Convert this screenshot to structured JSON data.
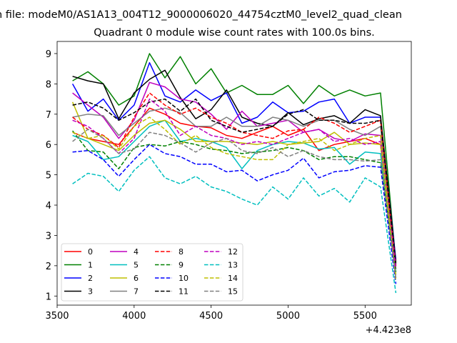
{
  "chart_data": {
    "type": "line",
    "suptitle": "n file: modeM0/AS1A13_004T12_9000006020_44754cztM0_level2_quad_clean",
    "title": "Quadrant 0 module wise count rates with 100.0s bins.",
    "xlabel": "",
    "ylabel": "",
    "x_offset_label": "+4.423e8",
    "xlim": [
      3500,
      5800
    ],
    "ylim": [
      0.7,
      9.4
    ],
    "xticks": [
      "3500",
      "4000",
      "4500",
      "5000",
      "5500"
    ],
    "yticks": [
      "1",
      "2",
      "3",
      "4",
      "5",
      "6",
      "7",
      "8",
      "9"
    ],
    "x": [
      3600,
      3700,
      3800,
      3900,
      4000,
      4100,
      4200,
      4300,
      4400,
      4500,
      4600,
      4700,
      4800,
      4900,
      5000,
      5100,
      5200,
      5300,
      5400,
      5500,
      5600,
      5700
    ],
    "legend": {
      "placement": "lower-left",
      "columns": 4
    },
    "series": [
      {
        "name": "0",
        "color": "#ff0000",
        "dash": false,
        "values": [
          6.4,
          6.2,
          6.1,
          6.0,
          6.6,
          7.2,
          7.0,
          6.7,
          6.6,
          6.55,
          6.3,
          6.2,
          6.4,
          6.6,
          6.3,
          6.5,
          5.8,
          6.0,
          6.1,
          6.2,
          6.0,
          1.9
        ]
      },
      {
        "name": "1",
        "color": "#008000",
        "dash": false,
        "values": [
          8.1,
          8.4,
          8.0,
          7.3,
          7.6,
          9.0,
          8.2,
          8.9,
          8.0,
          8.5,
          7.7,
          7.95,
          7.65,
          7.65,
          7.95,
          7.35,
          7.95,
          7.6,
          7.8,
          7.6,
          7.7,
          2.1
        ]
      },
      {
        "name": "2",
        "color": "#0000ff",
        "dash": false,
        "values": [
          8.0,
          7.1,
          7.5,
          6.8,
          7.3,
          8.7,
          7.6,
          7.4,
          7.8,
          7.45,
          7.7,
          6.7,
          6.9,
          7.4,
          7.05,
          7.1,
          7.4,
          7.5,
          6.7,
          6.9,
          6.9,
          2.2
        ]
      },
      {
        "name": "3",
        "color": "#000000",
        "dash": false,
        "values": [
          8.25,
          8.1,
          8.0,
          6.85,
          7.7,
          8.15,
          8.45,
          7.55,
          6.85,
          7.15,
          7.8,
          6.9,
          6.7,
          6.6,
          7.05,
          6.65,
          6.85,
          6.95,
          6.7,
          7.15,
          6.95,
          2.1
        ]
      },
      {
        "name": "4",
        "color": "#bf00bf",
        "dash": false,
        "values": [
          7.7,
          7.3,
          6.9,
          6.2,
          6.8,
          8.05,
          7.9,
          7.5,
          7.4,
          7.0,
          6.5,
          7.1,
          6.6,
          6.7,
          6.8,
          6.4,
          6.5,
          6.2,
          6.1,
          6.35,
          6.3,
          2.0
        ]
      },
      {
        "name": "5",
        "color": "#00bfbf",
        "dash": false,
        "values": [
          6.3,
          6.1,
          5.5,
          5.6,
          6.1,
          6.6,
          6.8,
          6.1,
          6.2,
          6.1,
          5.9,
          5.2,
          5.8,
          6.0,
          6.1,
          6.05,
          5.85,
          5.9,
          5.35,
          5.75,
          5.7,
          1.8
        ]
      },
      {
        "name": "6",
        "color": "#bfbf00",
        "dash": false,
        "values": [
          7.4,
          6.2,
          6.0,
          5.8,
          6.3,
          6.7,
          6.8,
          6.5,
          6.1,
          6.1,
          6.1,
          6.05,
          6.0,
          6.1,
          6.0,
          6.05,
          6.1,
          6.4,
          6.0,
          6.05,
          6.0,
          1.7
        ]
      },
      {
        "name": "7",
        "color": "#808080",
        "dash": false,
        "values": [
          6.9,
          7.0,
          6.95,
          6.3,
          6.7,
          7.1,
          7.2,
          7.05,
          6.6,
          6.6,
          6.9,
          6.6,
          6.6,
          6.9,
          6.8,
          6.6,
          6.8,
          6.8,
          6.5,
          6.3,
          6.6,
          1.9
        ]
      },
      {
        "name": "8",
        "color": "#ff0000",
        "dash": true,
        "values": [
          6.9,
          6.5,
          6.3,
          5.9,
          6.9,
          7.7,
          7.3,
          7.0,
          7.2,
          6.9,
          6.7,
          6.4,
          6.3,
          6.2,
          6.45,
          6.5,
          6.9,
          6.7,
          6.4,
          6.6,
          6.8,
          2.0
        ]
      },
      {
        "name": "9",
        "color": "#008000",
        "dash": true,
        "values": [
          6.45,
          5.8,
          5.75,
          5.2,
          5.9,
          6.0,
          5.95,
          6.1,
          6.0,
          5.85,
          5.8,
          5.7,
          5.75,
          5.8,
          5.9,
          5.8,
          5.5,
          5.6,
          5.6,
          5.5,
          5.4,
          1.8
        ]
      },
      {
        "name": "10",
        "color": "#0000ff",
        "dash": true,
        "values": [
          5.75,
          5.8,
          5.5,
          4.95,
          5.5,
          6.0,
          5.7,
          5.6,
          5.35,
          5.35,
          5.1,
          5.15,
          4.8,
          5.0,
          5.15,
          5.55,
          4.9,
          5.1,
          5.15,
          5.3,
          5.25,
          1.4
        ]
      },
      {
        "name": "11",
        "color": "#000000",
        "dash": true,
        "values": [
          7.3,
          7.4,
          7.2,
          6.8,
          7.05,
          7.4,
          7.5,
          7.1,
          7.5,
          6.8,
          6.6,
          6.4,
          6.5,
          6.6,
          7.0,
          7.15,
          6.8,
          6.8,
          6.7,
          6.7,
          6.8,
          2.0
        ]
      },
      {
        "name": "12",
        "color": "#bf00bf",
        "dash": true,
        "values": [
          6.8,
          6.6,
          6.2,
          5.7,
          6.2,
          7.5,
          7.1,
          6.3,
          6.6,
          6.3,
          6.2,
          6.0,
          6.1,
          6.0,
          6.2,
          6.4,
          6.5,
          6.1,
          6.2,
          6.0,
          6.1,
          1.9
        ]
      },
      {
        "name": "13",
        "color": "#00bfbf",
        "dash": true,
        "values": [
          4.7,
          5.05,
          4.95,
          4.45,
          5.15,
          5.6,
          4.9,
          4.7,
          4.95,
          4.6,
          4.45,
          4.2,
          4.0,
          4.6,
          4.2,
          4.9,
          4.3,
          4.55,
          4.1,
          4.9,
          4.6,
          1.1
        ]
      },
      {
        "name": "14",
        "color": "#bfbf00",
        "dash": true,
        "values": [
          6.4,
          6.2,
          6.3,
          5.85,
          6.6,
          6.9,
          6.5,
          6.0,
          6.3,
          5.9,
          5.7,
          5.6,
          5.5,
          5.5,
          6.0,
          6.1,
          6.2,
          5.8,
          6.0,
          6.2,
          6.3,
          1.5
        ]
      },
      {
        "name": "15",
        "color": "#808080",
        "dash": true,
        "values": [
          6.1,
          6.5,
          6.2,
          5.7,
          5.85,
          6.4,
          6.3,
          6.05,
          5.75,
          6.05,
          6.2,
          5.8,
          5.7,
          5.9,
          5.6,
          5.8,
          5.6,
          5.5,
          5.5,
          5.45,
          5.5,
          1.6
        ]
      }
    ]
  }
}
